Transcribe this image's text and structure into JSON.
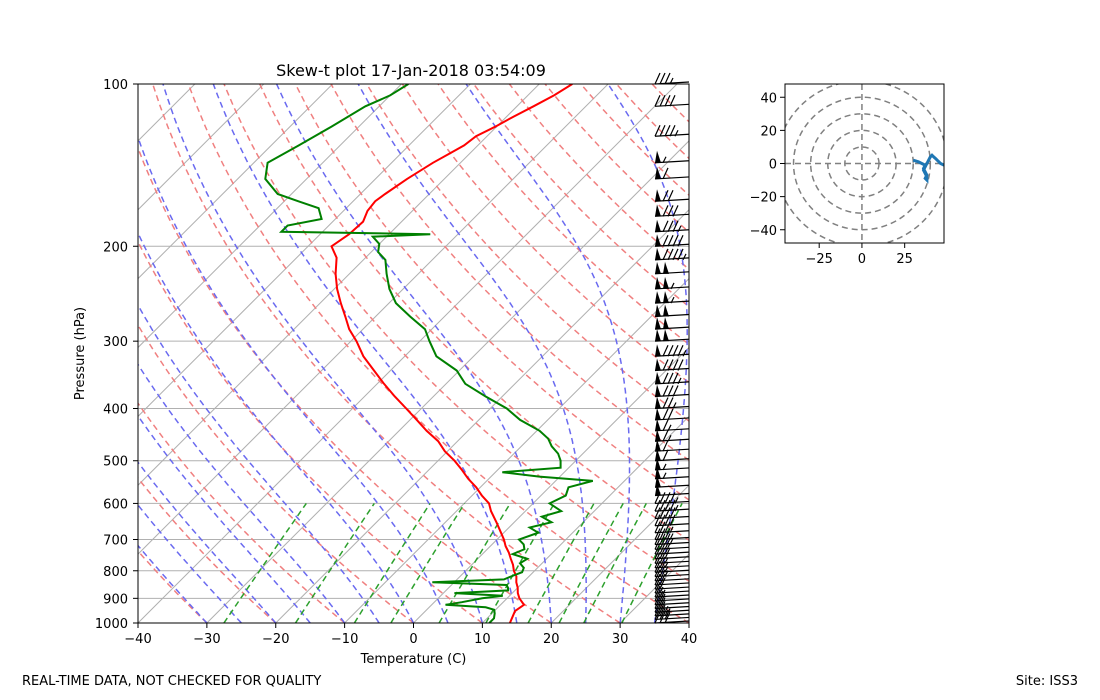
{
  "title": "Skew-t plot 17-Jan-2018 03:54:09",
  "footer_left": "REAL-TIME DATA, NOT CHECKED FOR QUALITY",
  "footer_right": "Site: ISS3",
  "colors": {
    "temperature": "#ff0000",
    "dewpoint": "#008000",
    "dry_adiabat": "#f08080",
    "moist_adiabat": "#6a6af0",
    "mixing_ratio": "#2ca02c",
    "isotherm": "#b0b0b0",
    "hodograph": "#1f77b4",
    "range_rings": "#808080"
  },
  "chart_data": [
    {
      "type": "line",
      "title": "Skew-t plot 17-Jan-2018 03:54:09",
      "xlabel": "Temperature (C)",
      "ylabel": "Pressure (hPa)",
      "xlim": [
        -40,
        40
      ],
      "ylim": [
        1000,
        100
      ],
      "y_scale": "log",
      "x_ticks": [
        -40,
        -30,
        -20,
        -10,
        0,
        10,
        20,
        30,
        40
      ],
      "y_ticks": [
        1000,
        900,
        800,
        700,
        600,
        500,
        400,
        300,
        200,
        100
      ],
      "grid": true,
      "series": [
        {
          "role": "temperature",
          "pressure": [
            1000,
            980,
            950,
            925,
            900,
            880,
            860,
            840,
            820,
            800,
            780,
            760,
            740,
            720,
            700,
            680,
            650,
            620,
            600,
            580,
            560,
            540,
            520,
            500,
            480,
            460,
            440,
            420,
            400,
            380,
            360,
            340,
            320,
            300,
            285,
            270,
            255,
            240,
            225,
            210,
            200,
            190,
            180,
            172,
            165,
            160,
            150,
            140,
            135,
            130,
            125,
            120,
            115,
            110,
            105,
            100
          ],
          "temperature": [
            14.0,
            13.6,
            13.0,
            13.4,
            11.8,
            10.8,
            10.0,
            9.0,
            8.2,
            7.0,
            6.0,
            4.8,
            3.6,
            2.2,
            1.0,
            -0.4,
            -2.6,
            -5.0,
            -6.4,
            -8.6,
            -10.6,
            -13.0,
            -15.2,
            -17.6,
            -20.4,
            -22.8,
            -26.0,
            -29.0,
            -32.2,
            -35.6,
            -39.0,
            -42.4,
            -46.0,
            -49.2,
            -52.0,
            -54.4,
            -57.0,
            -59.6,
            -62.0,
            -64.2,
            -66.6,
            -65.8,
            -65.6,
            -66.5,
            -66.8,
            -66.4,
            -65.4,
            -64.0,
            -63.0,
            -62.0,
            -61.6,
            -60.2,
            -59.0,
            -57.6,
            -56.2,
            -55.2
          ]
        },
        {
          "role": "dewpoint",
          "pressure": [
            1000,
            980,
            960,
            945,
            935,
            925,
            915,
            900,
            890,
            880,
            870,
            860,
            850,
            840,
            830,
            820,
            805,
            790,
            775,
            760,
            745,
            730,
            715,
            700,
            680,
            665,
            650,
            635,
            620,
            600,
            580,
            560,
            545,
            535,
            525,
            515,
            500,
            485,
            470,
            455,
            440,
            420,
            400,
            380,
            360,
            340,
            320,
            300,
            285,
            270,
            255,
            240,
            225,
            212,
            205,
            198,
            192,
            190,
            188,
            183,
            178,
            170,
            165,
            160,
            150,
            140,
            130,
            120,
            110,
            105,
            100
          ],
          "dewpoint": [
            11.0,
            11.0,
            10.4,
            9.8,
            8.2,
            2.0,
            4.0,
            6.4,
            9.0,
            1.6,
            9.0,
            8.6,
            8.0,
            -3.2,
            6.8,
            7.4,
            8.4,
            8.0,
            6.8,
            7.2,
            4.4,
            5.4,
            4.6,
            3.2,
            5.0,
            3.0,
            5.4,
            3.2,
            5.2,
            2.4,
            3.6,
            2.8,
            5.4,
            -3.0,
            -9.0,
            -1.2,
            -2.2,
            -3.6,
            -5.6,
            -7.2,
            -9.6,
            -14.0,
            -17.6,
            -22.4,
            -27.2,
            -30.4,
            -35.4,
            -38.6,
            -41.0,
            -45.0,
            -49.0,
            -52.0,
            -54.6,
            -56.8,
            -59.0,
            -60.0,
            -62.0,
            -54.0,
            -76.0,
            -76.0,
            -72.0,
            -74.0,
            -78.0,
            -82.0,
            -86.0,
            -88.0,
            -86.0,
            -84.0,
            -82.0,
            -80.0,
            -79.0
          ]
        }
      ],
      "wind_barbs": {
        "pressure": [
          1000,
          985,
          970,
          955,
          940,
          925,
          910,
          895,
          880,
          865,
          850,
          835,
          820,
          805,
          790,
          775,
          760,
          745,
          730,
          715,
          700,
          680,
          660,
          640,
          620,
          600,
          580,
          560,
          540,
          520,
          500,
          480,
          460,
          440,
          420,
          400,
          380,
          360,
          340,
          320,
          300,
          285,
          270,
          255,
          240,
          225,
          212,
          200,
          188,
          176,
          165,
          150,
          140,
          125,
          110,
          100
        ],
        "speed_kt": [
          30,
          30,
          25,
          25,
          20,
          20,
          20,
          15,
          15,
          20,
          20,
          20,
          25,
          25,
          25,
          25,
          30,
          30,
          30,
          35,
          35,
          35,
          40,
          40,
          45,
          45,
          50,
          50,
          55,
          55,
          60,
          60,
          65,
          65,
          70,
          75,
          80,
          85,
          90,
          95,
          100,
          100,
          100,
          105,
          105,
          100,
          95,
          90,
          85,
          80,
          70,
          60,
          55,
          45,
          40,
          35
        ]
      }
    },
    {
      "type": "line",
      "xlim": [
        -45,
        48
      ],
      "ylim": [
        -48,
        48
      ],
      "x_ticks": [
        -25,
        0,
        25
      ],
      "y_ticks": [
        40,
        20,
        0,
        -20,
        -40
      ],
      "range_rings": [
        10,
        20,
        30,
        40,
        50
      ],
      "series": [
        {
          "role": "hodograph",
          "u": [
            30,
            33,
            35,
            37,
            36,
            37,
            38,
            37,
            38,
            38,
            37,
            36,
            37,
            38,
            39,
            40,
            41,
            42,
            43,
            44,
            45,
            46,
            48
          ],
          "v": [
            2,
            1,
            0,
            -1,
            -3,
            -5,
            -7,
            -9,
            -10,
            -8,
            -6,
            -4,
            -2,
            0,
            2,
            4,
            5,
            4,
            3,
            2,
            1,
            0,
            -1
          ]
        }
      ]
    }
  ]
}
